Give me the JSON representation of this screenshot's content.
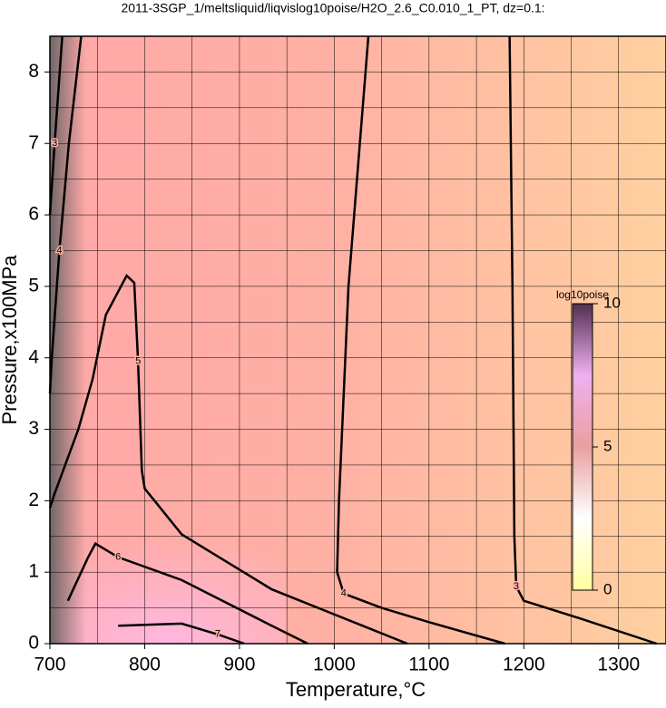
{
  "chart_data": {
    "type": "contour",
    "title": "2011-3SGP_1/meltsliquid/liqvislog10poise/H2O_2.6_C0.010_1_PT, dz=0.1:",
    "xlabel": "Temperature,°C",
    "ylabel": "Pressure,x100MPa",
    "xlim": [
      700,
      1350
    ],
    "ylim": [
      0,
      8.5
    ],
    "xticks": [
      700,
      800,
      900,
      1000,
      1100,
      1200,
      1300
    ],
    "yticks": [
      0,
      1,
      2,
      3,
      4,
      5,
      6,
      7,
      8
    ],
    "xgrid": [
      750,
      800,
      850,
      900,
      950,
      1000,
      1050,
      1100,
      1150,
      1200,
      1250,
      1300
    ],
    "ygrid": [
      0.5,
      1,
      1.5,
      2,
      2.5,
      3,
      3.5,
      4,
      4.5,
      5,
      5.5,
      6,
      6.5,
      7,
      7.5,
      8
    ],
    "contours": [
      {
        "level": 3,
        "x": [
          1185,
          1188,
          1190,
          1192,
          1200,
          1260,
          1340
        ],
        "y": [
          8.5,
          5,
          1.5,
          0.8,
          0.6,
          0.35,
          0
        ]
      },
      {
        "level": 4,
        "x": [
          1036,
          1015,
          1005,
          1003,
          1010,
          1050,
          1100,
          1180
        ],
        "y": [
          8.5,
          5,
          2,
          1,
          0.7,
          0.5,
          0.3,
          0
        ]
      },
      {
        "level": 4,
        "x": [
          733,
          720,
          710,
          702,
          700
        ],
        "y": [
          8.5,
          7,
          5.5,
          4,
          3.5
        ]
      },
      {
        "level": 3,
        "x": [
          713,
          705,
          700
        ],
        "y": [
          8.5,
          7,
          6
        ]
      },
      {
        "level": 5,
        "x": [
          700,
          705,
          730,
          745,
          759,
          781,
          789,
          793,
          797,
          800,
          839,
          934,
          1030,
          1077
        ],
        "y": [
          1.9,
          2.1,
          3,
          3.7,
          4.6,
          5.15,
          5.05,
          3.95,
          2.42,
          2.17,
          1.53,
          0.76,
          0.25,
          0
        ]
      },
      {
        "level": 6,
        "x": [
          719,
          740,
          748,
          772,
          839,
          934,
          972
        ],
        "y": [
          0.6,
          1.2,
          1.4,
          1.21,
          0.89,
          0.25,
          0
        ]
      },
      {
        "level": 7,
        "x": [
          772,
          839,
          877,
          905
        ],
        "y": [
          0.25,
          0.28,
          0.13,
          0
        ]
      }
    ],
    "colorbar": {
      "label": "log10poise",
      "lim": [
        0,
        10
      ],
      "ticks": [
        0,
        5,
        10
      ]
    }
  }
}
